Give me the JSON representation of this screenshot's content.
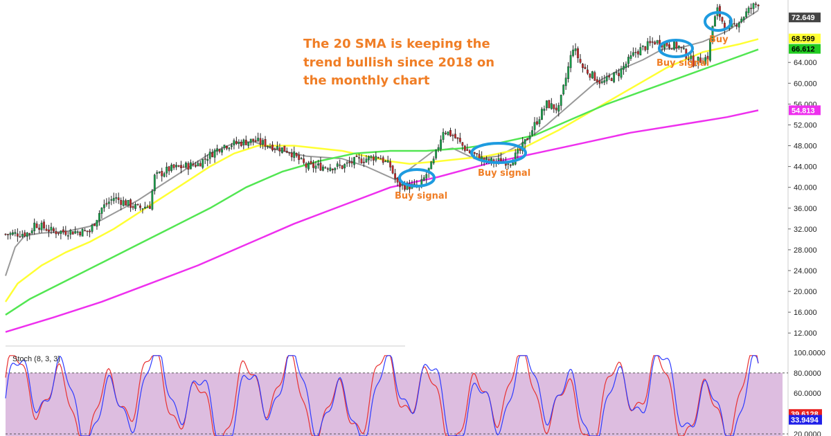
{
  "colors": {
    "bull": "#16a34a",
    "bear": "#c62828",
    "sma20": "#999999",
    "sma_yellow": "#ffff33",
    "sma_green": "#52e652",
    "sma_magenta": "#ee30ee",
    "stoch_k": "#2e3bff",
    "stoch_d": "#e83030",
    "stoch_bg": "#ddbde0",
    "annotation": "#f07e26",
    "highlight": "#1e9be0"
  },
  "chart_data": [
    {
      "type": "candlestick",
      "title": "",
      "ylim": [
        9.5,
        76
      ],
      "y_ticks": [
        12,
        16,
        20,
        24,
        28,
        32,
        36,
        40,
        44,
        48,
        52,
        56,
        60,
        64
      ],
      "y_tick_labels": [
        "12.000",
        "16.000",
        "20.000",
        "24.000",
        "28.000",
        "32.000",
        "36.000",
        "40.000",
        "44.000",
        "48.000",
        "52.000",
        "56.000",
        "60.000",
        "64.000"
      ],
      "grid": false,
      "price_badges": [
        {
          "label": "72.649",
          "value": 72.649,
          "bg": "#444444",
          "fg": "#ffffff"
        },
        {
          "label": "68.599",
          "value": 68.599,
          "bg": "#ffff33",
          "fg": "#000000"
        },
        {
          "label": "66.612",
          "value": 66.612,
          "bg": "#22cc22",
          "fg": "#000000"
        },
        {
          "label": "54.813",
          "value": 54.813,
          "bg": "#ee30ee",
          "fg": "#ffffff"
        }
      ],
      "series": [
        {
          "color_key": "sma20",
          "points": [
            [
              0,
              23
            ],
            [
              4,
              28.5
            ],
            [
              8,
              30.7
            ],
            [
              15,
              31.2
            ],
            [
              25,
              31.5
            ],
            [
              35,
              32.5
            ],
            [
              45,
              35
            ],
            [
              55,
              37.5
            ],
            [
              65,
              40.5
            ],
            [
              75,
              43.5
            ],
            [
              85,
              46.5
            ],
            [
              95,
              48.5
            ],
            [
              103,
              48.8
            ],
            [
              112,
              47.3
            ],
            [
              125,
              46
            ],
            [
              140,
              45.5
            ],
            [
              150,
              44
            ],
            [
              162,
              41.5
            ],
            [
              168,
              43.5
            ],
            [
              178,
              47
            ],
            [
              186,
              47.5
            ],
            [
              195,
              45.5
            ],
            [
              205,
              46
            ],
            [
              215,
              48.5
            ],
            [
              225,
              52
            ],
            [
              235,
              56
            ],
            [
              245,
              60
            ],
            [
              255,
              62.5
            ],
            [
              265,
              64.5
            ],
            [
              273,
              66.5
            ],
            [
              282,
              67
            ],
            [
              290,
              68
            ],
            [
              300,
              70
            ],
            [
              308,
              72.5
            ],
            [
              313,
              74
            ]
          ]
        },
        {
          "color_key": "sma_yellow",
          "points": [
            [
              0,
              18
            ],
            [
              5,
              21.5
            ],
            [
              15,
              25
            ],
            [
              25,
              27.5
            ],
            [
              35,
              29.5
            ],
            [
              45,
              32
            ],
            [
              55,
              35
            ],
            [
              65,
              38
            ],
            [
              75,
              41
            ],
            [
              85,
              44
            ],
            [
              95,
              46.5
            ],
            [
              105,
              48
            ],
            [
              120,
              48
            ],
            [
              140,
              47
            ],
            [
              160,
              45
            ],
            [
              168,
              44.5
            ],
            [
              180,
              45
            ],
            [
              200,
              46
            ],
            [
              215,
              47.5
            ],
            [
              230,
              51
            ],
            [
              245,
              55
            ],
            [
              260,
              59
            ],
            [
              275,
              63
            ],
            [
              290,
              66
            ],
            [
              305,
              67.5
            ],
            [
              313,
              68.5
            ]
          ]
        },
        {
          "color_key": "sma_green",
          "points": [
            [
              0,
              15.5
            ],
            [
              10,
              18.5
            ],
            [
              25,
              22
            ],
            [
              40,
              25.5
            ],
            [
              55,
              29
            ],
            [
              70,
              32.5
            ],
            [
              85,
              36
            ],
            [
              100,
              40
            ],
            [
              115,
              43
            ],
            [
              130,
              45
            ],
            [
              145,
              46.5
            ],
            [
              160,
              47
            ],
            [
              175,
              47
            ],
            [
              190,
              47.5
            ],
            [
              205,
              48.5
            ],
            [
              220,
              50
            ],
            [
              235,
              53
            ],
            [
              250,
              56
            ],
            [
              265,
              58.5
            ],
            [
              280,
              61
            ],
            [
              295,
              63.5
            ],
            [
              313,
              66.5
            ]
          ]
        },
        {
          "color_key": "sma_magenta",
          "points": [
            [
              0,
              12.2
            ],
            [
              20,
              15
            ],
            [
              40,
              18
            ],
            [
              60,
              21.5
            ],
            [
              80,
              25
            ],
            [
              100,
              29
            ],
            [
              120,
              33
            ],
            [
              140,
              36.5
            ],
            [
              160,
              40
            ],
            [
              180,
              42
            ],
            [
              200,
              44.5
            ],
            [
              220,
              46.5
            ],
            [
              240,
              48.5
            ],
            [
              260,
              50.5
            ],
            [
              280,
              52
            ],
            [
              300,
              53.5
            ],
            [
              313,
              54.8
            ]
          ]
        }
      ],
      "candle_path": [
        [
          0,
          31
        ],
        [
          10,
          31.2
        ],
        [
          12,
          33
        ],
        [
          20,
          31.5
        ],
        [
          35,
          31.5
        ],
        [
          40,
          36
        ],
        [
          45,
          38
        ],
        [
          55,
          36
        ],
        [
          60,
          36.5
        ],
        [
          62,
          42
        ],
        [
          68,
          43.5
        ],
        [
          80,
          44.5
        ],
        [
          90,
          48
        ],
        [
          103,
          49
        ],
        [
          118,
          47
        ],
        [
          125,
          44
        ],
        [
          140,
          44
        ],
        [
          145,
          45
        ],
        [
          155,
          46
        ],
        [
          160,
          44
        ],
        [
          163,
          40.5
        ],
        [
          172,
          40
        ],
        [
          178,
          45
        ],
        [
          182,
          51
        ],
        [
          186,
          50
        ],
        [
          192,
          47
        ],
        [
          200,
          45
        ],
        [
          210,
          45
        ],
        [
          214,
          47
        ],
        [
          220,
          52
        ],
        [
          225,
          56
        ],
        [
          230,
          55
        ],
        [
          236,
          67
        ],
        [
          240,
          63
        ],
        [
          248,
          60
        ],
        [
          255,
          62
        ],
        [
          262,
          66
        ],
        [
          270,
          68
        ],
        [
          280,
          67
        ],
        [
          286,
          64
        ],
        [
          292,
          65
        ],
        [
          294,
          71
        ],
        [
          296,
          74
        ],
        [
          300,
          70
        ],
        [
          305,
          72
        ],
        [
          310,
          74.5
        ],
        [
          313,
          75.5
        ]
      ]
    },
    {
      "type": "line",
      "title": "Stoch (8, 3, 3)",
      "ylim": [
        18,
        103
      ],
      "y_ticks": [
        20,
        40,
        60,
        80,
        100
      ],
      "y_tick_labels": [
        "20.0000",
        "40.0000",
        "60.0000",
        "80.0000",
        "100.0000"
      ],
      "levels": [
        20,
        80
      ],
      "last_values": [
        {
          "label": "39.6128",
          "value": 39.6128,
          "bg": "#e82020"
        },
        {
          "label": "33.9494",
          "value": 33.9494,
          "bg": "#2020e8"
        }
      ]
    }
  ],
  "annotation": {
    "line1": "The 20 SMA is keeping the",
    "line2": "trend bullish since 2018 on",
    "line3": "the monthly chart"
  },
  "labels": {
    "buy_signal_1": "Buy signal",
    "buy_signal_2": "Buy signal",
    "buy_signal_3": "Buy signal",
    "buy": "Buy"
  }
}
